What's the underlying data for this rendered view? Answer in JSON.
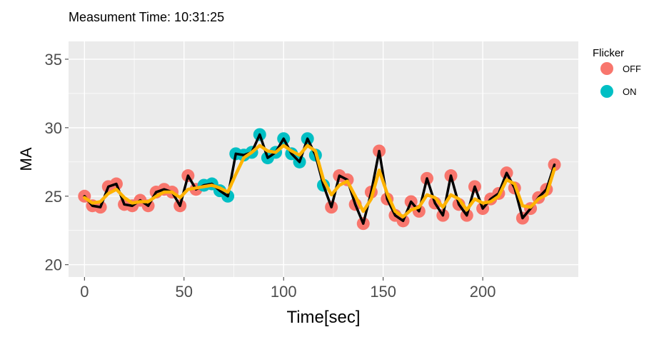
{
  "chart_data": {
    "type": "scatter",
    "title": "Measument Time: 10:31:25",
    "xlabel": "Time[sec]",
    "ylabel": "MA",
    "xlim": [
      -8,
      248
    ],
    "ylim": [
      19.1,
      36.3
    ],
    "x_ticks": [
      0,
      50,
      100,
      150,
      200
    ],
    "y_ticks": [
      20,
      25,
      30,
      35
    ],
    "grid": true,
    "legend": {
      "title": "Flicker",
      "position": "right",
      "entries": [
        {
          "label": "OFF",
          "color": "#F8766D"
        },
        {
          "label": "ON",
          "color": "#00BFC4"
        }
      ]
    },
    "series": [
      {
        "name": "OFF",
        "color": "#F8766D",
        "points": [
          [
            0,
            25.0
          ],
          [
            4,
            24.3
          ],
          [
            8,
            24.2
          ],
          [
            12,
            25.7
          ],
          [
            16,
            25.9
          ],
          [
            20,
            24.4
          ],
          [
            24,
            24.3
          ],
          [
            28,
            24.7
          ],
          [
            32,
            24.3
          ],
          [
            36,
            25.3
          ],
          [
            40,
            25.5
          ],
          [
            44,
            25.3
          ],
          [
            48,
            24.3
          ],
          [
            52,
            26.5
          ],
          [
            56,
            25.5
          ],
          [
            124,
            24.2
          ],
          [
            128,
            26.5
          ],
          [
            132,
            26.2
          ],
          [
            136,
            24.4
          ],
          [
            140,
            23.0
          ],
          [
            144,
            25.3
          ],
          [
            148,
            28.3
          ],
          [
            152,
            24.8
          ],
          [
            156,
            23.6
          ],
          [
            160,
            23.2
          ],
          [
            164,
            24.6
          ],
          [
            168,
            23.9
          ],
          [
            172,
            26.3
          ],
          [
            176,
            24.5
          ],
          [
            180,
            23.6
          ],
          [
            184,
            26.5
          ],
          [
            188,
            24.4
          ],
          [
            192,
            23.6
          ],
          [
            196,
            25.7
          ],
          [
            200,
            24.1
          ],
          [
            204,
            24.8
          ],
          [
            208,
            25.2
          ],
          [
            212,
            26.7
          ],
          [
            216,
            25.6
          ],
          [
            220,
            23.4
          ],
          [
            224,
            24.1
          ],
          [
            228,
            24.9
          ],
          [
            232,
            25.5
          ],
          [
            236,
            27.3
          ]
        ]
      },
      {
        "name": "ON",
        "color": "#00BFC4",
        "points": [
          [
            60,
            25.8
          ],
          [
            64,
            25.9
          ],
          [
            68,
            25.4
          ],
          [
            72,
            25.0
          ],
          [
            76,
            28.1
          ],
          [
            80,
            28.0
          ],
          [
            84,
            28.2
          ],
          [
            88,
            29.5
          ],
          [
            92,
            27.8
          ],
          [
            96,
            28.2
          ],
          [
            100,
            29.2
          ],
          [
            104,
            28.1
          ],
          [
            108,
            27.5
          ],
          [
            112,
            29.2
          ],
          [
            116,
            28.0
          ],
          [
            120,
            25.8
          ]
        ]
      }
    ],
    "line_series": [
      {
        "color": "#000000",
        "values": [
          25.0,
          24.3,
          24.2,
          25.7,
          25.9,
          24.4,
          24.3,
          24.7,
          24.3,
          25.3,
          25.5,
          25.3,
          24.3,
          26.5,
          25.5,
          25.8,
          25.9,
          25.4,
          25.0,
          28.1,
          28.0,
          28.2,
          29.5,
          27.8,
          28.2,
          29.2,
          28.1,
          27.5,
          29.2,
          28.0,
          25.8,
          24.2,
          26.5,
          26.2,
          24.4,
          23.0,
          25.3,
          28.3,
          24.8,
          23.6,
          23.2,
          24.6,
          23.9,
          26.3,
          24.5,
          23.6,
          26.5,
          24.4,
          23.6,
          25.7,
          24.1,
          24.8,
          25.2,
          26.7,
          25.6,
          23.4,
          24.1,
          24.9,
          25.5,
          27.3
        ]
      },
      {
        "color": "#FFB300",
        "values": [
          24.9,
          24.5,
          24.6,
          25.2,
          25.5,
          24.9,
          24.5,
          24.6,
          24.6,
          25.0,
          25.3,
          25.3,
          24.9,
          25.5,
          25.6,
          25.7,
          25.8,
          25.6,
          25.3,
          26.6,
          27.8,
          28.2,
          28.7,
          28.3,
          28.2,
          28.7,
          28.3,
          28.0,
          28.7,
          28.3,
          26.2,
          25.1,
          25.8,
          26.1,
          25.0,
          23.9,
          24.8,
          26.9,
          25.2,
          23.9,
          23.5,
          24.0,
          24.2,
          25.1,
          24.9,
          24.2,
          25.1,
          24.8,
          24.0,
          24.8,
          24.5,
          24.6,
          25.0,
          26.2,
          25.9,
          24.3,
          24.2,
          24.8,
          25.1,
          27.0
        ]
      }
    ],
    "x_step": 4
  }
}
